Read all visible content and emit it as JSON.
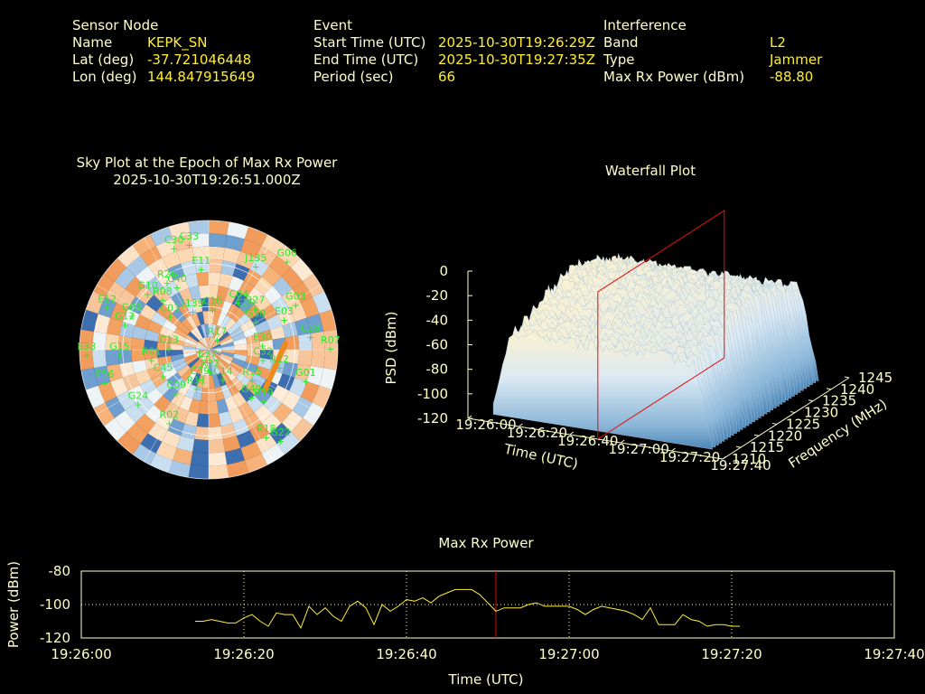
{
  "header": {
    "sensor": {
      "heading": "Sensor Node",
      "name_label": "Name",
      "name_value": "KEPK_SN",
      "lat_label": "Lat (deg)",
      "lat_value": "-37.721046448",
      "lon_label": "Lon (deg)",
      "lon_value": "144.847915649"
    },
    "event": {
      "heading": "Event",
      "start_label": "Start Time (UTC)",
      "start_value": "2025-10-30T19:26:29Z",
      "end_label": "End Time (UTC)",
      "end_value": "2025-10-30T19:27:35Z",
      "period_label": "Period (sec)",
      "period_value": "66"
    },
    "interference": {
      "heading": "Interference",
      "band_label": "Band",
      "band_value": "L2",
      "type_label": "Type",
      "type_value": "Jammer",
      "power_label": "Max Rx Power (dBm)",
      "power_value": "-88.80"
    }
  },
  "chart_data": [
    {
      "type": "scatter",
      "title": "Sky Plot at the Epoch of Max Rx Power",
      "subtitle": "2025-10-30T19:26:51.000Z",
      "satellites": [
        {
          "name": "G06",
          "az": 40,
          "el": 5
        },
        {
          "name": "C30",
          "az": 342,
          "el": 12
        },
        {
          "name": "C33",
          "az": 350,
          "el": 12
        },
        {
          "name": "J135",
          "az": 28,
          "el": 20
        },
        {
          "name": "E11",
          "az": 355,
          "el": 30
        },
        {
          "name": "R26",
          "az": 330,
          "el": 32
        },
        {
          "name": "G10",
          "az": 315,
          "el": 30
        },
        {
          "name": "R08",
          "az": 320,
          "el": 40
        },
        {
          "name": "C40",
          "az": 335,
          "el": 38
        },
        {
          "name": "C04",
          "az": 30,
          "el": 48
        },
        {
          "name": "C20",
          "az": 40,
          "el": 50
        },
        {
          "name": "R27",
          "az": 45,
          "el": 44
        },
        {
          "name": "G03",
          "az": 60,
          "el": 20
        },
        {
          "name": "E03",
          "az": 65,
          "el": 32
        },
        {
          "name": "G30",
          "az": 55,
          "el": 50
        },
        {
          "name": "C03",
          "az": 315,
          "el": 52
        },
        {
          "name": "J139",
          "az": 340,
          "el": 58
        },
        {
          "name": "C16",
          "az": 5,
          "el": 58
        },
        {
          "name": "E12",
          "az": 295,
          "el": 12
        },
        {
          "name": "G09",
          "az": 297,
          "el": 30
        },
        {
          "name": "G12",
          "az": 290,
          "el": 28
        },
        {
          "name": "C28",
          "az": 80,
          "el": 18
        },
        {
          "name": "R07",
          "az": 87,
          "el": 5
        },
        {
          "name": "C13",
          "az": 280,
          "el": 62
        },
        {
          "name": "R17",
          "az": 30,
          "el": 78
        },
        {
          "name": "E30",
          "az": 80,
          "el": 52
        },
        {
          "name": "C32",
          "az": 95,
          "el": 52
        },
        {
          "name": "R12",
          "az": 100,
          "el": 40
        },
        {
          "name": "E33",
          "az": 270,
          "el": 5
        },
        {
          "name": "G15",
          "az": 270,
          "el": 28
        },
        {
          "name": "R01",
          "az": 265,
          "el": 50
        },
        {
          "name": "E37",
          "az": 190,
          "el": 85
        },
        {
          "name": "C45",
          "az": 245,
          "el": 55
        },
        {
          "name": "R22",
          "az": 175,
          "el": 78
        },
        {
          "name": "C14",
          "az": 150,
          "el": 70
        },
        {
          "name": "R15",
          "az": 120,
          "el": 55
        },
        {
          "name": "G01",
          "az": 105,
          "el": 20
        },
        {
          "name": "E56",
          "az": 255,
          "el": 15
        },
        {
          "name": "C09",
          "az": 220,
          "el": 55
        },
        {
          "name": "R11",
          "az": 200,
          "el": 65
        },
        {
          "name": "C39",
          "az": 200,
          "el": 72
        },
        {
          "name": "R19",
          "az": 130,
          "el": 40
        },
        {
          "name": "G24",
          "az": 235,
          "el": 30
        },
        {
          "name": "G49",
          "az": 135,
          "el": 48
        },
        {
          "name": "R02",
          "az": 210,
          "el": 35
        },
        {
          "name": "G22",
          "az": 140,
          "el": 12
        },
        {
          "name": "R18",
          "az": 145,
          "el": 20
        }
      ]
    },
    {
      "type": "area",
      "title": "Waterfall Plot",
      "xlabel": "Time (UTC)",
      "ylabel": "Frequency (MHz)",
      "zlabel": "PSD (dBm)",
      "x_ticks": [
        "19:26:00",
        "19:26:20",
        "19:26:40",
        "19:27:00",
        "19:27:20",
        "19:27:40"
      ],
      "y_ticks": [
        1210,
        1215,
        1220,
        1225,
        1230,
        1235,
        1240,
        1245
      ],
      "z_ticks": [
        0,
        -20,
        -40,
        -60,
        -80,
        -100,
        -120
      ],
      "zlim": [
        -120,
        0
      ],
      "marker_time": "19:26:51"
    },
    {
      "type": "line",
      "title": "Max Rx Power",
      "xlabel": "Time (UTC)",
      "ylabel": "Power (dBm)",
      "ylim": [
        -120,
        -80
      ],
      "x_ticks": [
        "19:26:00",
        "19:26:20",
        "19:26:40",
        "19:27:00",
        "19:27:20",
        "19:27:40"
      ],
      "y_ticks": [
        -80,
        -100,
        -120
      ],
      "marker_time": "19:26:51",
      "series": [
        {
          "x": [
            14,
            15,
            16,
            17,
            18,
            19,
            20,
            21,
            22,
            23,
            24,
            25,
            26,
            27,
            28,
            29,
            30,
            31,
            32,
            33,
            34,
            35,
            36,
            37,
            38,
            39,
            40,
            41,
            42,
            43,
            44,
            45,
            46,
            47,
            48,
            49,
            50,
            51,
            52,
            53,
            54,
            55,
            56,
            57,
            58,
            59,
            60,
            61,
            62,
            63,
            64,
            65,
            66,
            67,
            68,
            69,
            70,
            71,
            72,
            73,
            74,
            75,
            76,
            77,
            78,
            79,
            80,
            81
          ],
          "y": [
            -110,
            -110,
            -109,
            -110,
            -111,
            -111,
            -108,
            -106,
            -110,
            -113,
            -105,
            -106,
            -106,
            -114,
            -101,
            -106,
            -102,
            -107,
            -110,
            -101,
            -98,
            -102,
            -112,
            -100,
            -104,
            -101,
            -97,
            -98,
            -96,
            -99,
            -95,
            -93,
            -91,
            -91,
            -91,
            -94,
            -99,
            -104,
            -102,
            -102,
            -102,
            -100,
            -99,
            -101,
            -101,
            -101,
            -101,
            -103,
            -106,
            -103,
            -101,
            -102,
            -103,
            -104,
            -106,
            -109,
            -102,
            -112,
            -112,
            -112,
            -106,
            -109,
            -110,
            -113,
            -112,
            -112,
            -113,
            -113
          ]
        }
      ]
    }
  ]
}
